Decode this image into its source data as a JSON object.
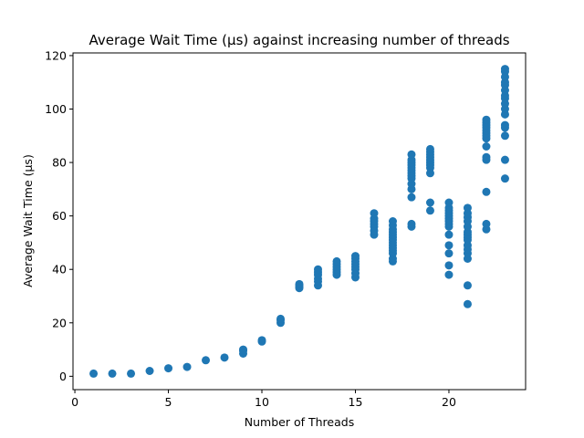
{
  "chart_data": {
    "type": "scatter",
    "title": "Average Wait Time (µs) against increasing number of threads",
    "xlabel": "Number of Threads",
    "ylabel": "Average Wait Time (µs)",
    "xlim": [
      -0.1,
      24.1
    ],
    "ylim": [
      -5,
      121
    ],
    "xticks": [
      0,
      5,
      10,
      15,
      20
    ],
    "yticks": [
      0,
      20,
      40,
      60,
      80,
      100,
      120
    ],
    "grid": false,
    "point_color": "#1f77b4",
    "series": [
      {
        "points": [
          [
            1,
            1
          ],
          [
            2,
            1
          ],
          [
            3,
            1
          ],
          [
            4,
            2
          ],
          [
            5,
            3
          ],
          [
            6,
            3.5
          ],
          [
            7,
            6
          ],
          [
            8,
            7
          ],
          [
            9,
            8.5
          ],
          [
            9,
            9.5
          ],
          [
            9,
            10
          ],
          [
            10,
            13
          ],
          [
            10,
            13.5
          ],
          [
            11,
            20
          ],
          [
            11,
            21
          ],
          [
            11,
            21.5
          ],
          [
            12,
            33
          ],
          [
            12,
            33.5
          ],
          [
            12,
            34
          ],
          [
            12,
            34.5
          ],
          [
            13,
            34
          ],
          [
            13,
            35.5
          ],
          [
            13,
            36.5
          ],
          [
            13,
            38
          ],
          [
            13,
            39
          ],
          [
            13,
            40
          ],
          [
            14,
            38
          ],
          [
            14,
            39
          ],
          [
            14,
            40
          ],
          [
            14,
            41
          ],
          [
            14,
            42
          ],
          [
            14,
            43
          ],
          [
            15,
            37
          ],
          [
            15,
            38.5
          ],
          [
            15,
            40
          ],
          [
            15,
            41
          ],
          [
            15,
            42
          ],
          [
            15,
            43
          ],
          [
            15,
            44
          ],
          [
            15,
            45
          ],
          [
            16,
            53
          ],
          [
            16,
            54.5
          ],
          [
            16,
            56
          ],
          [
            16,
            57
          ],
          [
            16,
            58
          ],
          [
            16,
            59
          ],
          [
            16,
            61
          ],
          [
            17,
            43
          ],
          [
            17,
            44
          ],
          [
            17,
            46
          ],
          [
            17,
            47
          ],
          [
            17,
            48
          ],
          [
            17,
            49
          ],
          [
            17,
            50
          ],
          [
            17,
            51
          ],
          [
            17,
            52
          ],
          [
            17,
            53
          ],
          [
            17,
            54
          ],
          [
            17,
            55
          ],
          [
            17,
            56.5
          ],
          [
            17,
            58
          ],
          [
            18,
            56
          ],
          [
            18,
            57
          ],
          [
            18,
            67
          ],
          [
            18,
            70
          ],
          [
            18,
            72
          ],
          [
            18,
            74
          ],
          [
            18,
            75
          ],
          [
            18,
            76
          ],
          [
            18,
            77
          ],
          [
            18,
            78
          ],
          [
            18,
            79
          ],
          [
            18,
            80
          ],
          [
            18,
            81
          ],
          [
            18,
            83
          ],
          [
            19,
            62
          ],
          [
            19,
            65
          ],
          [
            19,
            76
          ],
          [
            19,
            78
          ],
          [
            19,
            79
          ],
          [
            19,
            80
          ],
          [
            19,
            81
          ],
          [
            19,
            82
          ],
          [
            19,
            83
          ],
          [
            19,
            84
          ],
          [
            19,
            85
          ],
          [
            20,
            38
          ],
          [
            20,
            41.5
          ],
          [
            20,
            46
          ],
          [
            20,
            49
          ],
          [
            20,
            53
          ],
          [
            20,
            56
          ],
          [
            20,
            57
          ],
          [
            20,
            58
          ],
          [
            20,
            59
          ],
          [
            20,
            60
          ],
          [
            20,
            61
          ],
          [
            20,
            62
          ],
          [
            20,
            63
          ],
          [
            20,
            65
          ],
          [
            21,
            27
          ],
          [
            21,
            34
          ],
          [
            21,
            44
          ],
          [
            21,
            46
          ],
          [
            21,
            47.5
          ],
          [
            21,
            49
          ],
          [
            21,
            51
          ],
          [
            21,
            52
          ],
          [
            21,
            53
          ],
          [
            21,
            54
          ],
          [
            21,
            56
          ],
          [
            21,
            58
          ],
          [
            21,
            59.5
          ],
          [
            21,
            61
          ],
          [
            21,
            63
          ],
          [
            22,
            55
          ],
          [
            22,
            57
          ],
          [
            22,
            69
          ],
          [
            22,
            81
          ],
          [
            22,
            82
          ],
          [
            22,
            86
          ],
          [
            22,
            89
          ],
          [
            22,
            90
          ],
          [
            22,
            91
          ],
          [
            22,
            92
          ],
          [
            22,
            93
          ],
          [
            22,
            94
          ],
          [
            22,
            95
          ],
          [
            22,
            96
          ],
          [
            23,
            74
          ],
          [
            23,
            81
          ],
          [
            23,
            90
          ],
          [
            23,
            93
          ],
          [
            23,
            94
          ],
          [
            23,
            98
          ],
          [
            23,
            100
          ],
          [
            23,
            102
          ],
          [
            23,
            104
          ],
          [
            23,
            105
          ],
          [
            23,
            107
          ],
          [
            23,
            109
          ],
          [
            23,
            110
          ],
          [
            23,
            112
          ],
          [
            23,
            114
          ],
          [
            23,
            115
          ]
        ]
      }
    ]
  }
}
